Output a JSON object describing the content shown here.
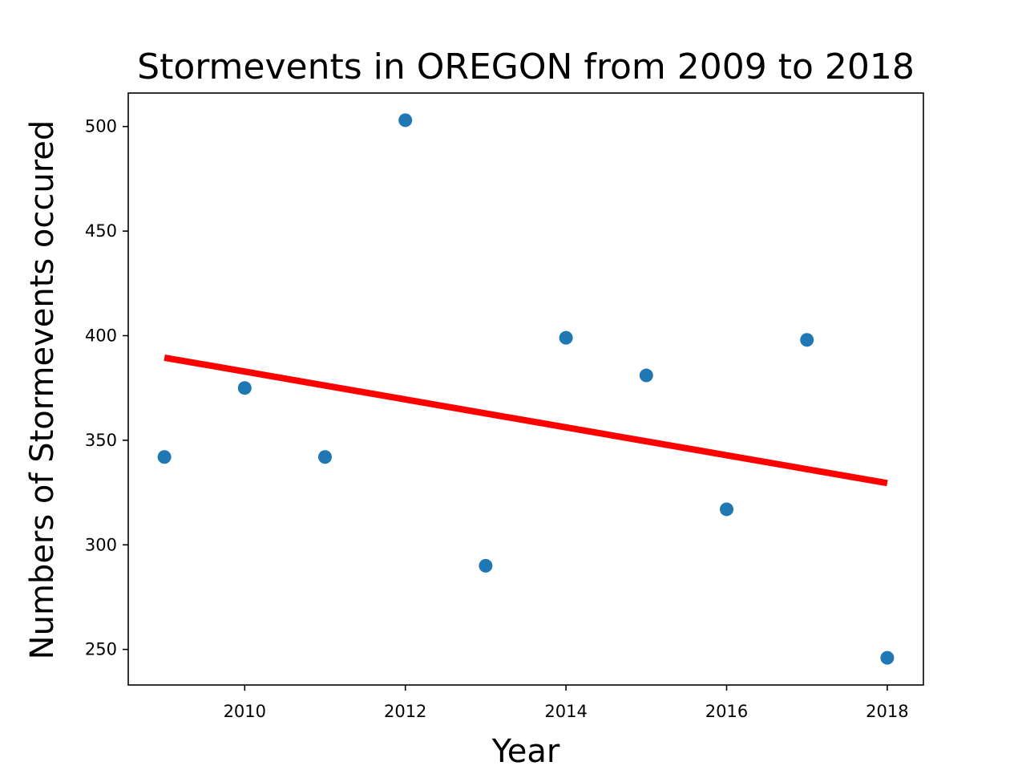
{
  "chart_data": {
    "type": "scatter",
    "title": "Stormevents in OREGON from 2009 to 2018",
    "xlabel": "Year",
    "ylabel": "Numbers of Stormevents occured",
    "xlim": [
      2008.55,
      2018.45
    ],
    "ylim": [
      233,
      516
    ],
    "xticks": [
      2010,
      2012,
      2014,
      2016,
      2018
    ],
    "xtick_labels": [
      "2010",
      "2012",
      "2014",
      "2016",
      "2018"
    ],
    "yticks": [
      250,
      300,
      350,
      400,
      450,
      500
    ],
    "ytick_labels": [
      "250",
      "300",
      "350",
      "400",
      "450",
      "500"
    ],
    "grid": false,
    "series": [
      {
        "type": "scatter",
        "color": "#1f77b4",
        "x": [
          2009,
          2010,
          2011,
          2012,
          2013,
          2014,
          2015,
          2016,
          2017,
          2018
        ],
        "y": [
          342,
          375,
          342,
          503,
          290,
          399,
          381,
          317,
          398,
          246
        ]
      },
      {
        "type": "line",
        "color": "#ff0000",
        "x": [
          2009,
          2018
        ],
        "y": [
          389.5,
          329.5
        ]
      }
    ]
  }
}
